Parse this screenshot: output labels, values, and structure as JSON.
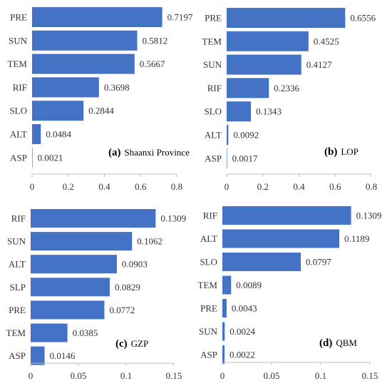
{
  "chart_data": [
    {
      "type": "bar",
      "orientation": "horizontal",
      "panel_letter": "(a)",
      "panel_name": "Shaanxi Province",
      "categories": [
        "PRE",
        "SUN",
        "TEM",
        "RIF",
        "SLO",
        "ALT",
        "ASP"
      ],
      "values": [
        0.7197,
        0.5812,
        0.5667,
        0.3698,
        0.2844,
        0.0484,
        0.0021
      ],
      "value_labels": [
        "0.7197",
        "0.5812",
        "0.5667",
        "0.3698",
        "0.2844",
        "0.0484",
        "0.0021"
      ],
      "xlim": [
        0,
        0.8
      ],
      "xticks": [
        0,
        0.2,
        0.4,
        0.6,
        0.8
      ],
      "xtick_labels": [
        "0",
        "0.2",
        "0.4",
        "0.6",
        "0.8"
      ],
      "bar_color": "#4472C4",
      "grid": false,
      "label_position": "bottom-right"
    },
    {
      "type": "bar",
      "orientation": "horizontal",
      "panel_letter": "(b)",
      "panel_name": "LOP",
      "categories": [
        "PRE",
        "TEM",
        "SUN",
        "RIF",
        "SLO",
        "ALT",
        "ASP"
      ],
      "values": [
        0.6556,
        0.4525,
        0.4127,
        0.2336,
        0.1343,
        0.0092,
        0.0017
      ],
      "value_labels": [
        "0.6556",
        "0.4525",
        "0.4127",
        "0.2336",
        "0.1343",
        "0.0092",
        "0.0017"
      ],
      "xlim": [
        0,
        0.8
      ],
      "xticks": [
        0,
        0.2,
        0.4,
        0.6,
        0.8
      ],
      "xtick_labels": [
        "0",
        "0.2",
        "0.4",
        "0.6",
        "0.8"
      ],
      "bar_color": "#4472C4",
      "grid": false,
      "label_position": "bottom-right"
    },
    {
      "type": "bar",
      "orientation": "horizontal",
      "panel_letter": "(c)",
      "panel_name": "GZP",
      "categories": [
        "RIF",
        "SUN",
        "ALT",
        "SLP",
        "PRE",
        "TEM",
        "ASP"
      ],
      "values": [
        0.1309,
        0.1062,
        0.0903,
        0.0829,
        0.0772,
        0.0385,
        0.0146
      ],
      "value_labels": [
        "0.1309",
        "0.1062",
        "0.0903",
        "0.0829",
        "0.0772",
        "0.0385",
        "0.0146"
      ],
      "xlim": [
        0,
        0.15
      ],
      "xticks": [
        0,
        0.05,
        0.1,
        0.15
      ],
      "xtick_labels": [
        "0",
        "0.05",
        "0.1",
        "0.15"
      ],
      "bar_color": "#4472C4",
      "grid": false,
      "label_position": "bottom-right"
    },
    {
      "type": "bar",
      "orientation": "horizontal",
      "panel_letter": "(d)",
      "panel_name": "QBM",
      "categories": [
        "RIF",
        "ALT",
        "SLO",
        "TEM",
        "PRE",
        "SUN",
        "ASP"
      ],
      "values": [
        0.1309,
        0.1189,
        0.0797,
        0.0089,
        0.0043,
        0.0024,
        0.0022
      ],
      "value_labels": [
        "0.1309",
        "0.1189",
        "0.0797",
        "0.0089",
        "0.0043",
        "0.0024",
        "0.0022"
      ],
      "xlim": [
        0,
        0.15
      ],
      "xticks": [
        0,
        0.05,
        0.1,
        0.15
      ],
      "xtick_labels": [
        "0",
        "0.05",
        "0.1",
        "0.15"
      ],
      "bar_color": "#4472C4",
      "grid": false,
      "label_position": "bottom-right"
    }
  ]
}
